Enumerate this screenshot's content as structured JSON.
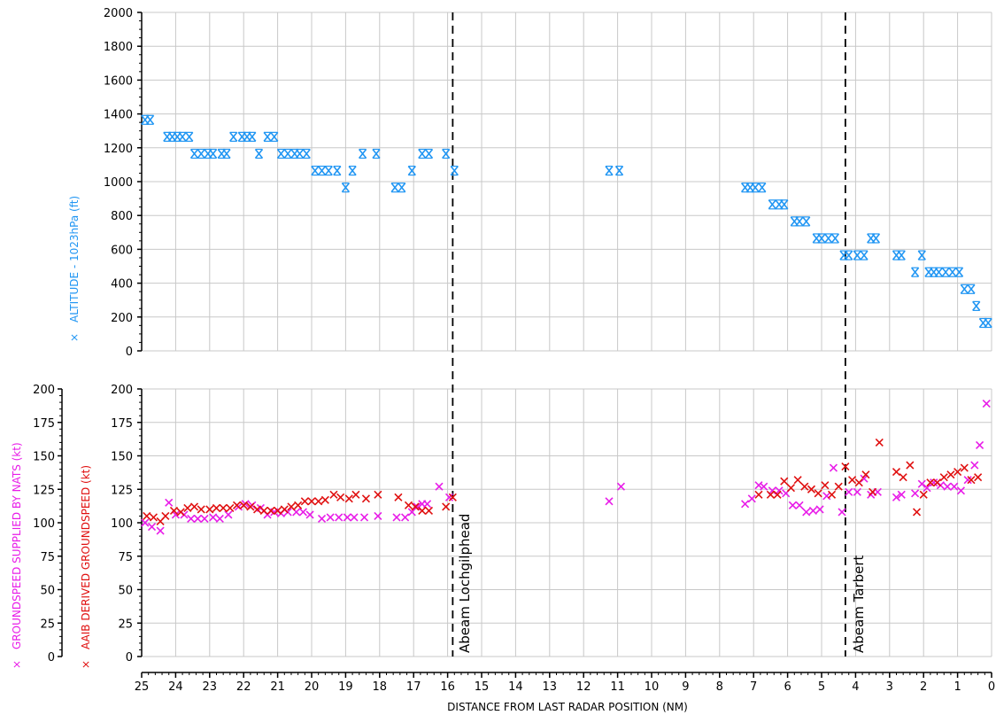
{
  "chart_data": [
    {
      "type": "scatter",
      "panel": "top",
      "ylabel": "ALTITUDE - 1023hPa (ft)",
      "ylim": [
        0,
        2000
      ],
      "yticks": [
        0,
        200,
        400,
        600,
        800,
        1000,
        1200,
        1400,
        1600,
        1800,
        2000
      ],
      "xlim": [
        25,
        0
      ],
      "grid": true,
      "colors": {
        "altitude": "#2196F3"
      },
      "series": [
        {
          "marker": "x",
          "color": "#2196F3",
          "x": [
            24.9,
            24.75,
            24.25,
            24.1,
            23.95,
            23.8,
            23.6,
            23.45,
            23.25,
            23.05,
            22.9,
            22.65,
            22.5,
            22.3,
            22.05,
            21.9,
            21.75,
            21.55,
            21.3,
            21.1,
            20.9,
            20.7,
            20.5,
            20.35,
            20.15,
            19.9,
            19.7,
            19.5,
            19.25,
            19.0,
            18.8,
            18.5,
            18.1,
            17.55,
            17.35,
            17.05,
            16.75,
            16.55,
            16.05,
            15.8,
            11.25,
            10.95,
            7.25,
            7.1,
            6.95,
            6.75,
            6.45,
            6.25,
            6.1,
            5.8,
            5.65,
            5.45,
            5.15,
            5.0,
            4.8,
            4.6,
            4.35,
            4.2,
            3.95,
            3.75,
            3.55,
            3.4,
            2.8,
            2.65,
            2.25,
            2.05,
            1.85,
            1.7,
            1.55,
            1.35,
            1.15,
            0.95,
            0.8,
            0.6,
            0.45,
            0.25,
            0.1
          ],
          "y": [
            1365,
            1365,
            1265,
            1265,
            1265,
            1265,
            1265,
            1165,
            1165,
            1165,
            1165,
            1165,
            1165,
            1265,
            1265,
            1265,
            1265,
            1165,
            1265,
            1265,
            1165,
            1165,
            1165,
            1165,
            1165,
            1065,
            1065,
            1065,
            1065,
            965,
            1065,
            1165,
            1165,
            965,
            965,
            1065,
            1165,
            1165,
            1165,
            1065,
            1065,
            1065,
            965,
            965,
            965,
            965,
            865,
            865,
            865,
            765,
            765,
            765,
            665,
            665,
            665,
            665,
            565,
            565,
            565,
            565,
            665,
            665,
            565,
            565,
            465,
            565,
            465,
            465,
            465,
            465,
            465,
            465,
            365,
            365,
            265,
            165,
            165
          ]
        }
      ]
    },
    {
      "type": "scatter",
      "panel": "bottom",
      "ylabel_nats": "GROUNDSPEED SUPPLIED BY NATS (kt)",
      "ylabel_aaib": "AAIB DERIVED GROUNDSPEED (kt)",
      "ylim": [
        0,
        200
      ],
      "yticks": [
        0,
        25,
        50,
        75,
        100,
        125,
        150,
        175,
        200
      ],
      "xlim": [
        25,
        0
      ],
      "xlabel": "DISTANCE FROM LAST RADAR POSITION (NM)",
      "xticks": [
        25,
        24,
        23,
        22,
        21,
        20,
        19,
        18,
        17,
        16,
        15,
        14,
        13,
        12,
        11,
        10,
        9,
        8,
        7,
        6,
        5,
        4,
        3,
        2,
        1,
        0
      ],
      "grid": true,
      "colors": {
        "nats": "#E81CE8",
        "aaib": "#E01010"
      },
      "series": [
        {
          "key": "nats",
          "marker": "x",
          "color": "#E81CE8",
          "x": [
            24.9,
            24.7,
            24.45,
            24.2,
            24.0,
            23.75,
            23.55,
            23.35,
            23.15,
            22.9,
            22.7,
            22.45,
            22.15,
            21.95,
            21.75,
            21.5,
            21.3,
            21.1,
            20.9,
            20.7,
            20.45,
            20.25,
            20.05,
            19.7,
            19.45,
            19.2,
            18.95,
            18.75,
            18.45,
            18.05,
            17.5,
            17.25,
            17.05,
            16.9,
            16.75,
            16.6,
            16.25,
            15.95,
            11.25,
            10.9,
            7.25,
            7.05,
            6.85,
            6.7,
            6.45,
            6.25,
            6.05,
            5.85,
            5.65,
            5.45,
            5.25,
            5.05,
            4.85,
            4.65,
            4.4,
            4.2,
            3.95,
            3.75,
            3.55,
            3.35,
            2.8,
            2.65,
            2.25,
            2.05,
            1.9,
            1.7,
            1.5,
            1.3,
            1.1,
            0.9,
            0.7,
            0.5,
            0.35,
            0.15
          ],
          "y": [
            100,
            97,
            94,
            115,
            106,
            106,
            103,
            103,
            103,
            104,
            103,
            106,
            112,
            114,
            113,
            111,
            106,
            108,
            107,
            108,
            108,
            108,
            106,
            103,
            104,
            104,
            104,
            104,
            104,
            105,
            104,
            104,
            108,
            112,
            114,
            114,
            127,
            119,
            116,
            127,
            114,
            118,
            128,
            127,
            124,
            124,
            122,
            113,
            113,
            108,
            109,
            110,
            120,
            141,
            108,
            123,
            123,
            133,
            121,
            123,
            119,
            121,
            122,
            129,
            126,
            130,
            128,
            127,
            127,
            124,
            132,
            143,
            158,
            189
          ]
        },
        {
          "key": "aaib",
          "marker": "x",
          "color": "#E01010",
          "x": [
            24.85,
            24.65,
            24.45,
            24.3,
            24.05,
            23.85,
            23.65,
            23.45,
            23.25,
            23.0,
            22.8,
            22.6,
            22.4,
            22.2,
            22.0,
            21.8,
            21.6,
            21.4,
            21.2,
            21.0,
            20.8,
            20.6,
            20.4,
            20.2,
            20.0,
            19.8,
            19.6,
            19.35,
            19.15,
            18.9,
            18.7,
            18.4,
            18.05,
            17.45,
            17.15,
            16.95,
            16.75,
            16.55,
            16.05,
            15.85,
            6.85,
            6.5,
            6.3,
            6.1,
            5.9,
            5.7,
            5.5,
            5.3,
            5.1,
            4.9,
            4.7,
            4.5,
            4.3,
            4.1,
            3.9,
            3.7,
            3.5,
            3.3,
            2.8,
            2.6,
            2.4,
            2.2,
            2.0,
            1.8,
            1.6,
            1.4,
            1.2,
            1.0,
            0.8,
            0.6,
            0.4
          ],
          "y": [
            105,
            104,
            101,
            105,
            109,
            108,
            111,
            112,
            110,
            110,
            111,
            111,
            111,
            113,
            113,
            112,
            110,
            109,
            109,
            109,
            110,
            112,
            113,
            116,
            116,
            116,
            117,
            121,
            119,
            118,
            121,
            118,
            121,
            119,
            113,
            112,
            109,
            109,
            112,
            119,
            121,
            121,
            121,
            131,
            126,
            132,
            127,
            125,
            122,
            128,
            121,
            127,
            142,
            132,
            130,
            136,
            123,
            160,
            138,
            134,
            143,
            108,
            121,
            130,
            130,
            134,
            136,
            138,
            141,
            132,
            134
          ]
        }
      ],
      "annotations": [
        {
          "text": "Abeam Lochgilphead",
          "x": 15.85
        },
        {
          "text": "Abeam Tarbert",
          "x": 4.3
        }
      ]
    }
  ]
}
